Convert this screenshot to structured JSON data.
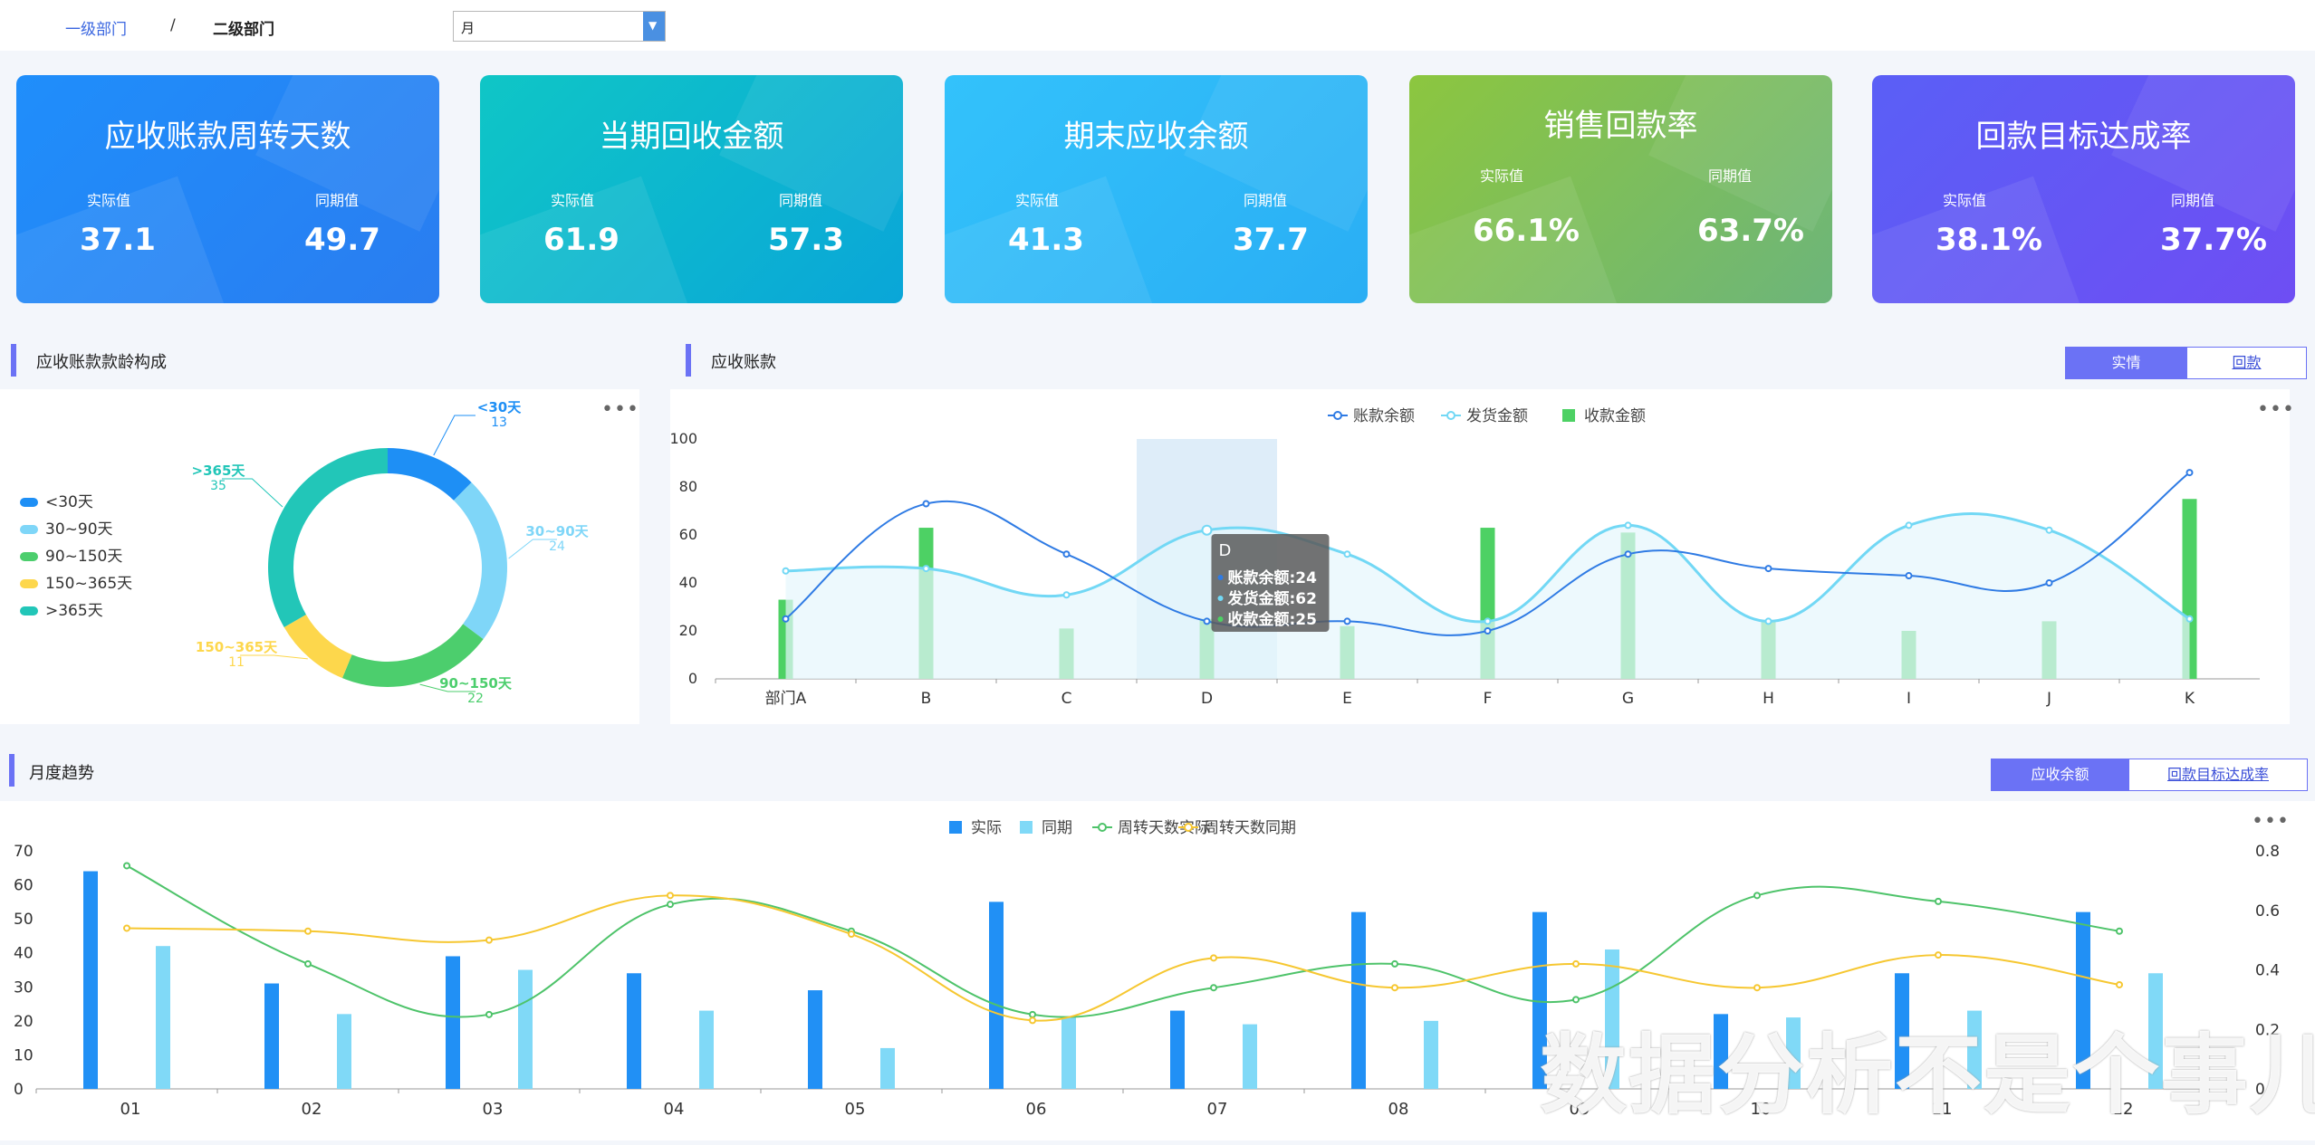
{
  "breadcrumb": {
    "level1": "一级部门",
    "sep": "/",
    "level2": "二级部门"
  },
  "period_select": {
    "value": "月"
  },
  "kpis": [
    {
      "title": "应收账款周转天数",
      "actual_label": "实际值",
      "prior_label": "同期值",
      "actual": "37.1",
      "prior": "49.7",
      "gradient": [
        "#1f8efb",
        "#2a7df0"
      ]
    },
    {
      "title": "当期回收金额",
      "actual_label": "实际值",
      "prior_label": "同期值",
      "actual": "61.9",
      "prior": "57.3",
      "gradient": [
        "#0fc6c6",
        "#0aa6d8"
      ]
    },
    {
      "title": "期末应收余额",
      "actual_label": "实际值",
      "prior_label": "同期值",
      "actual": "41.3",
      "prior": "37.7",
      "gradient": [
        "#33c2fb",
        "#2aaef4"
      ]
    },
    {
      "title": "销售回款率",
      "actual_label": "实际值",
      "prior_label": "同期值",
      "actual": "66.1%",
      "prior": "63.7%",
      "gradient": [
        "#8cc63f",
        "#6db57a"
      ]
    },
    {
      "title": "回款目标达成率",
      "actual_label": "实际值",
      "prior_label": "同期值",
      "actual": "38.1%",
      "prior": "37.7%",
      "gradient": [
        "#5a5ff6",
        "#6e4ef3"
      ]
    }
  ],
  "aging": {
    "title": "应收账款款龄构成"
  },
  "receivable": {
    "title": "应收账款",
    "toggle": [
      "实情",
      "回款"
    ]
  },
  "monthly": {
    "title": "月度趋势",
    "toggle": [
      "应收余额",
      "回款目标达成率"
    ]
  },
  "colors": {
    "accent": "#6b72f5"
  },
  "icons": {
    "more": "more-dots-icon",
    "dropdown": "chevron-down-icon"
  },
  "watermark": "数据分析不是个事儿",
  "chart_data": [
    {
      "type": "pie",
      "name": "aging-donut",
      "categories": [
        "<30天",
        "30~90天",
        "90~150天",
        "150~365天",
        ">365天"
      ],
      "values": [
        13,
        24,
        22,
        11,
        35
      ],
      "colors": [
        "#1e8ff5",
        "#7fd6f8",
        "#4cce6d",
        "#fdd74c",
        "#22c6b8"
      ],
      "legend_position": "left"
    },
    {
      "type": "line",
      "name": "receivable-by-dept",
      "categories": [
        "部门A",
        "B",
        "C",
        "D",
        "E",
        "F",
        "G",
        "H",
        "I",
        "J",
        "K"
      ],
      "series": [
        {
          "name": "账款余额",
          "type": "line",
          "color": "#2f7be4",
          "values": [
            25,
            73,
            52,
            24,
            24,
            20,
            52,
            46,
            43,
            40,
            86
          ]
        },
        {
          "name": "发货金额",
          "type": "area",
          "color": "#72d8f5",
          "values": [
            45,
            46,
            35,
            62,
            52,
            24,
            64,
            24,
            64,
            62,
            25
          ]
        },
        {
          "name": "收款金额",
          "type": "bar",
          "color": "#4dd164",
          "values": [
            33,
            63,
            21,
            25,
            22,
            63,
            61,
            24,
            20,
            24,
            75
          ]
        }
      ],
      "ylim": [
        0,
        100
      ],
      "yticks": [
        0,
        20,
        40,
        60,
        80,
        100
      ],
      "highlight_category": "D",
      "tooltip": {
        "title": "D",
        "lines": [
          "账款余额:24",
          "发货金额:62",
          "收款金额:25"
        ]
      }
    },
    {
      "type": "bar",
      "name": "monthly-trend",
      "categories": [
        "01",
        "02",
        "03",
        "04",
        "05",
        "06",
        "07",
        "08",
        "09",
        "10",
        "11",
        "12"
      ],
      "series": [
        {
          "name": "实际",
          "type": "bar",
          "axis": "left",
          "color": "#2190f5",
          "values": [
            64,
            31,
            39,
            34,
            29,
            55,
            23,
            52,
            52,
            22,
            34,
            52
          ]
        },
        {
          "name": "同期",
          "type": "bar",
          "axis": "left",
          "color": "#80d9f7",
          "values": [
            42,
            22,
            35,
            23,
            12,
            21,
            19,
            20,
            41,
            21,
            23,
            34
          ]
        },
        {
          "name": "周转天数实际",
          "type": "line",
          "axis": "right",
          "color": "#4ec36a",
          "values": [
            0.75,
            0.42,
            0.25,
            0.62,
            0.53,
            0.25,
            0.34,
            0.42,
            0.3,
            0.65,
            0.63,
            0.53
          ]
        },
        {
          "name": "周转天数同期",
          "type": "line",
          "axis": "right",
          "color": "#f6c731",
          "values": [
            0.54,
            0.53,
            0.5,
            0.65,
            0.52,
            0.23,
            0.44,
            0.34,
            0.42,
            0.34,
            0.45,
            0.35
          ]
        }
      ],
      "ylim_left": [
        0,
        70
      ],
      "yticks_left": [
        0,
        10,
        20,
        30,
        40,
        50,
        60,
        70
      ],
      "ylim_right": [
        0,
        0.8
      ],
      "yticks_right": [
        "0",
        "0.2",
        "0.4",
        "0.6",
        "0.8"
      ]
    }
  ]
}
